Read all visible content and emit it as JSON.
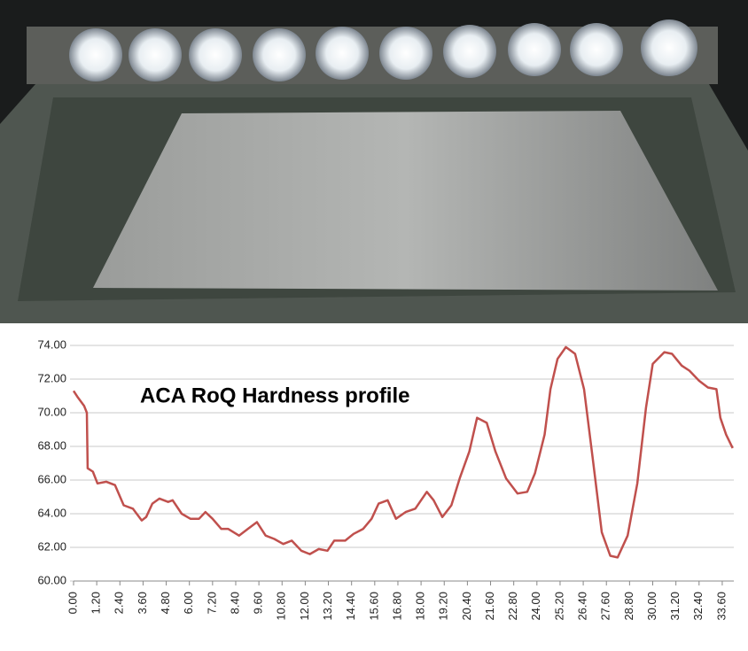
{
  "chart_data": {
    "type": "line",
    "title": "ACA RoQ Hardness profile",
    "x": [
      0,
      0.23,
      0.55,
      0.69,
      0.73,
      1.0,
      1.24,
      1.7,
      2.15,
      2.6,
      3.07,
      3.53,
      3.76,
      4.08,
      4.45,
      4.9,
      5.13,
      5.6,
      6.05,
      6.5,
      6.83,
      7.2,
      7.65,
      8.0,
      8.57,
      9.03,
      9.5,
      9.95,
      10.4,
      10.86,
      11.3,
      11.8,
      12.24,
      12.7,
      13.15,
      13.5,
      14.07,
      14.5,
      15.0,
      15.44,
      15.8,
      16.27,
      16.7,
      17.2,
      17.7,
      18.3,
      18.65,
      19.1,
      19.57,
      20.0,
      20.5,
      20.9,
      21.4,
      21.85,
      22.4,
      23.0,
      23.5,
      23.9,
      24.4,
      24.7,
      25.07,
      25.5,
      25.98,
      26.44,
      26.9,
      27.36,
      27.8,
      28.18,
      28.7,
      29.2,
      29.65,
      30.0,
      30.6,
      31.0,
      31.5,
      31.9,
      32.4,
      32.86,
      33.3,
      33.5,
      33.8,
      34.14
    ],
    "values": [
      71.3,
      70.9,
      70.4,
      70.0,
      66.7,
      66.5,
      65.8,
      65.9,
      65.7,
      64.5,
      64.3,
      63.6,
      63.8,
      64.6,
      64.9,
      64.7,
      64.8,
      64.0,
      63.7,
      63.7,
      64.1,
      63.7,
      63.1,
      63.1,
      62.7,
      63.1,
      63.5,
      62.7,
      62.5,
      62.2,
      62.4,
      61.8,
      61.6,
      61.9,
      61.8,
      62.4,
      62.4,
      62.8,
      63.1,
      63.7,
      64.6,
      64.8,
      63.7,
      64.1,
      64.3,
      65.3,
      64.8,
      63.8,
      64.5,
      66.1,
      67.7,
      69.7,
      69.4,
      67.7,
      66.1,
      65.2,
      65.3,
      66.4,
      68.7,
      71.4,
      73.2,
      73.9,
      73.5,
      71.4,
      67.2,
      62.9,
      61.5,
      61.4,
      62.7,
      65.8,
      70.3,
      72.9,
      73.6,
      73.5,
      72.8,
      72.5,
      71.9,
      71.5,
      71.4,
      69.7,
      68.7,
      67.9
    ],
    "color": "#c0504d",
    "xlim": [
      0,
      34.2
    ],
    "ylim": [
      60,
      74
    ],
    "yticks": [
      {
        "value": 60,
        "label": "60.00"
      },
      {
        "value": 62,
        "label": "62.00"
      },
      {
        "value": 64,
        "label": "64.00"
      },
      {
        "value": 66,
        "label": "66.00"
      },
      {
        "value": 68,
        "label": "68.00"
      },
      {
        "value": 70,
        "label": "70.00"
      },
      {
        "value": 72,
        "label": "72.00"
      },
      {
        "value": 74,
        "label": "74.00"
      }
    ],
    "xticks": [
      {
        "value": 0,
        "label": "0.00"
      },
      {
        "value": 1.2,
        "label": "1.20"
      },
      {
        "value": 2.4,
        "label": "2.40"
      },
      {
        "value": 3.6,
        "label": "3.60"
      },
      {
        "value": 4.8,
        "label": "4.80"
      },
      {
        "value": 6,
        "label": "6.00"
      },
      {
        "value": 7.2,
        "label": "7.20"
      },
      {
        "value": 8.4,
        "label": "8.40"
      },
      {
        "value": 9.6,
        "label": "9.60"
      },
      {
        "value": 10.8,
        "label": "10.80"
      },
      {
        "value": 12,
        "label": "12.00"
      },
      {
        "value": 13.2,
        "label": "13.20"
      },
      {
        "value": 14.4,
        "label": "14.40"
      },
      {
        "value": 15.6,
        "label": "15.60"
      },
      {
        "value": 16.8,
        "label": "16.80"
      },
      {
        "value": 18,
        "label": "18.00"
      },
      {
        "value": 19.2,
        "label": "19.20"
      },
      {
        "value": 20.4,
        "label": "20.40"
      },
      {
        "value": 21.6,
        "label": "21.60"
      },
      {
        "value": 22.8,
        "label": "22.80"
      },
      {
        "value": 24,
        "label": "24.00"
      },
      {
        "value": 25.2,
        "label": "25.20"
      },
      {
        "value": 26.4,
        "label": "26.40"
      },
      {
        "value": 27.6,
        "label": "27.60"
      },
      {
        "value": 28.8,
        "label": "28.80"
      },
      {
        "value": 30,
        "label": "30.00"
      },
      {
        "value": 31.2,
        "label": "31.20"
      },
      {
        "value": 32.4,
        "label": "32.40"
      },
      {
        "value": 33.6,
        "label": "33.60"
      }
    ],
    "grid": true
  }
}
